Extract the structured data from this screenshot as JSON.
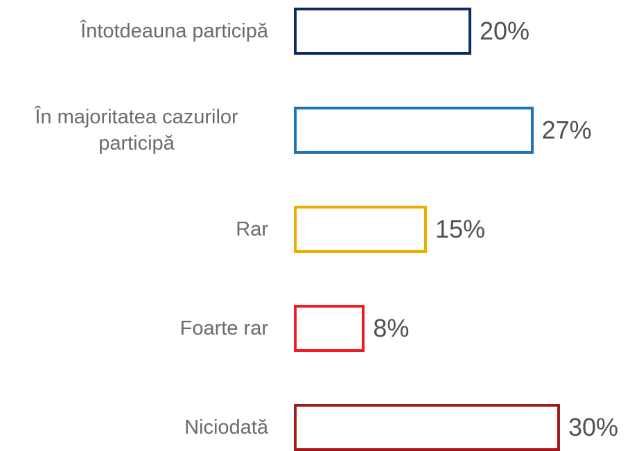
{
  "chart_data": {
    "type": "bar",
    "orientation": "horizontal",
    "categories": [
      "Întotdeauna participă",
      "În majoritatea cazurilor participă",
      "Rar",
      "Foarte rar",
      "Niciodată"
    ],
    "values": [
      20,
      27,
      15,
      8,
      30
    ],
    "value_labels": [
      "20%",
      "27%",
      "15%",
      "8%",
      "30%"
    ],
    "colors": [
      "#0c2a64",
      "#1b75bb",
      "#f0ab00",
      "#ee1c25",
      "#a3191e"
    ],
    "fill": "none"
  }
}
